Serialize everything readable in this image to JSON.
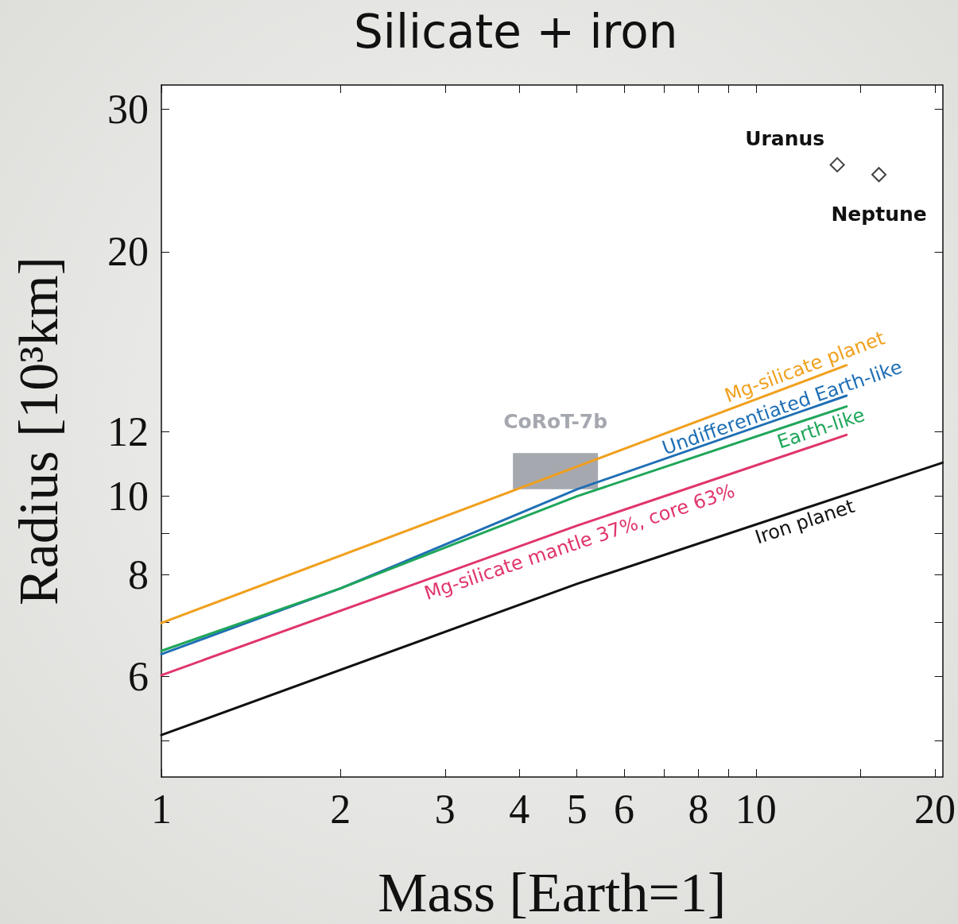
{
  "chart_data": {
    "type": "line",
    "title": "Silicate + iron",
    "xlabel": "Mass [Earth=1]",
    "ylabel": "Radius [10³km]",
    "log": "xy",
    "xlim": [
      1,
      20.6
    ],
    "xticks": [
      1,
      2,
      3,
      4,
      5,
      6,
      {
        "value": 7,
        "label": null
      },
      8,
      {
        "value": 9,
        "label": null
      },
      10,
      {
        "value": 15,
        "label": null
      },
      20
    ],
    "ylim": [
      4.51,
      32.1
    ],
    "yticks": [
      {
        "value": 5,
        "label": null
      },
      6,
      {
        "value": 7,
        "label": null
      },
      8,
      {
        "value": 9,
        "label": null
      },
      10,
      12,
      20,
      30
    ],
    "series": [
      {
        "name": "Mg-silicate planet",
        "color": "#f0a01e",
        "x": [
          1,
          14.2
        ],
        "values": [
          6.98,
          14.5
        ]
      },
      {
        "name": "Undifferentiated Earth-like",
        "color": "#1f6fb5",
        "x": [
          1,
          2,
          5,
          14.2
        ],
        "values": [
          6.39,
          7.7,
          10.2,
          13.3
        ]
      },
      {
        "name": "Earth-like",
        "color": "#1fa65a",
        "x": [
          1,
          2,
          5,
          14.2
        ],
        "values": [
          6.45,
          7.7,
          10.0,
          12.9
        ]
      },
      {
        "name": "Mg-silicate mantle 37%, core 63%",
        "color": "#e0356b",
        "x": [
          1,
          5,
          14.2
        ],
        "values": [
          6.02,
          9.2,
          11.9
        ]
      },
      {
        "name": "Iron planet",
        "color": "#111111",
        "x": [
          1,
          5,
          20.6
        ],
        "values": [
          5.08,
          7.8,
          11.0
        ]
      },
      {
        "type": "bar",
        "color": "#a6a8b0",
        "x": [
          4.6
        ],
        "base": [
          10.2
        ],
        "values": [
          1.1
        ]
      },
      {
        "type": "scatter",
        "color": "#111111",
        "marker": "diamond",
        "x": [
          13.7,
          16.1
        ],
        "values": [
          25.6,
          24.9
        ]
      }
    ],
    "annotations": [
      {
        "text": "CoRoT-7b",
        "x": 4.6,
        "y": 11.3
      },
      {
        "text": "Uranus",
        "x": 13.7,
        "y": 25.6
      },
      {
        "text": "Neptune",
        "x": 16.1,
        "y": 24.9
      }
    ]
  }
}
